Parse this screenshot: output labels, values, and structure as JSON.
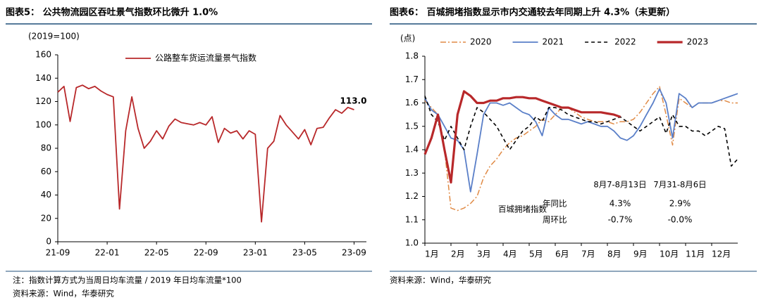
{
  "chart_data": [
    {
      "type": "line",
      "title": "图表5：  公共物流园区吞吐景气指数环比微升 1.0%",
      "y_unit": "(2019=100)",
      "note": "注：指数计算方式为当周日均车流量 / 2019 年日均车流量*100",
      "source": "资料来源：Wind，华泰研究",
      "x": [
        0,
        0.5,
        1,
        1.5,
        2,
        2.5,
        3,
        3.5,
        4,
        4.5,
        5,
        5.5,
        6,
        6.5,
        7,
        7.5,
        8,
        8.5,
        9,
        9.5,
        10,
        10.5,
        11,
        11.5,
        12,
        12.5,
        13,
        13.5,
        14,
        14.5,
        15,
        15.5,
        16,
        16.5,
        17,
        17.5,
        18,
        18.5,
        19,
        19.5,
        20,
        20.5,
        21,
        21.5,
        22,
        22.5,
        23,
        23.5,
        24
      ],
      "series": [
        {
          "name": "公路整车货运流量景气指数",
          "color": "#b8282a",
          "style": "solid",
          "values": [
            128,
            133,
            103,
            132,
            134,
            131,
            133,
            129,
            126,
            124,
            28,
            95,
            124,
            97,
            80,
            86,
            95,
            88,
            99,
            105,
            102,
            101,
            100,
            102,
            100,
            107,
            85,
            97,
            93,
            95,
            88,
            95,
            92,
            17,
            80,
            86,
            108,
            100,
            94,
            88,
            96,
            83,
            97,
            98,
            106,
            113,
            110,
            115,
            113
          ]
        }
      ],
      "annotations": [
        {
          "text": "113.0"
        }
      ],
      "xlim": [
        0,
        25
      ],
      "xticks": [
        {
          "value": 0,
          "label": "21-09"
        },
        {
          "value": 4,
          "label": "22-01"
        },
        {
          "value": 8,
          "label": "22-05"
        },
        {
          "value": 12,
          "label": "22-09"
        },
        {
          "value": 16,
          "label": "23-01"
        },
        {
          "value": 20,
          "label": "23-05"
        },
        {
          "value": 24,
          "label": "23-09"
        }
      ],
      "ylim": [
        0,
        160
      ],
      "yticks": [
        0,
        20,
        40,
        60,
        80,
        100,
        120,
        140,
        160
      ],
      "legend": "top-left"
    },
    {
      "type": "line",
      "title": "图表6：  百城拥堵指数显示市内交通较去年同期上升 4.3%（未更新）",
      "y_unit": "(点)",
      "source": "资料来源：Wind，华泰研究",
      "series_label": "百城拥堵指数",
      "x": [
        0,
        0.25,
        0.5,
        0.75,
        1,
        1.25,
        1.5,
        1.75,
        2,
        2.25,
        2.5,
        2.75,
        3,
        3.25,
        3.5,
        3.75,
        4,
        4.25,
        4.5,
        4.75,
        5,
        5.25,
        5.5,
        5.75,
        6,
        6.25,
        6.5,
        6.75,
        7,
        7.25,
        7.5,
        7.75,
        8,
        8.25,
        8.5,
        8.75,
        9,
        9.25,
        9.5,
        9.75,
        10,
        10.25,
        10.5,
        10.75,
        11,
        11.25,
        11.5,
        11.75,
        12
      ],
      "series": [
        {
          "name": "2020",
          "color": "#e08a45",
          "style": "dashdot",
          "values": [
            1.61,
            1.58,
            1.55,
            1.4,
            1.15,
            1.14,
            1.15,
            1.17,
            1.2,
            1.28,
            1.33,
            1.36,
            1.4,
            1.43,
            1.45,
            1.46,
            1.48,
            1.5,
            1.53,
            1.52,
            1.55,
            1.58,
            1.58,
            1.56,
            1.54,
            1.53,
            1.52,
            1.52,
            1.52,
            1.51,
            1.52,
            1.52,
            1.53,
            1.56,
            1.6,
            1.64,
            1.67,
            1.55,
            1.42,
            1.62,
            1.6,
            1.58,
            1.6,
            1.6,
            1.6,
            1.61,
            1.61,
            1.6,
            1.6
          ]
        },
        {
          "name": "2021",
          "color": "#5a7fc8",
          "style": "solid",
          "values": [
            1.62,
            1.57,
            1.55,
            1.5,
            1.45,
            1.44,
            1.4,
            1.22,
            1.38,
            1.55,
            1.6,
            1.6,
            1.59,
            1.6,
            1.58,
            1.56,
            1.55,
            1.52,
            1.46,
            1.58,
            1.55,
            1.53,
            1.53,
            1.52,
            1.51,
            1.52,
            1.51,
            1.5,
            1.5,
            1.48,
            1.45,
            1.44,
            1.46,
            1.5,
            1.55,
            1.6,
            1.66,
            1.6,
            1.45,
            1.64,
            1.62,
            1.58,
            1.6,
            1.6,
            1.6,
            1.61,
            1.62,
            1.63,
            1.64
          ]
        },
        {
          "name": "2022",
          "color": "#000000",
          "style": "dashed",
          "values": [
            1.63,
            1.55,
            1.52,
            1.44,
            1.5,
            1.45,
            1.4,
            1.5,
            1.58,
            1.56,
            1.53,
            1.5,
            1.45,
            1.4,
            1.44,
            1.48,
            1.5,
            1.54,
            1.52,
            1.58,
            1.58,
            1.57,
            1.55,
            1.54,
            1.53,
            1.52,
            1.52,
            1.51,
            1.52,
            1.53,
            1.54,
            1.52,
            1.5,
            1.48,
            1.5,
            1.52,
            1.54,
            1.47,
            1.55,
            1.5,
            1.5,
            1.48,
            1.48,
            1.46,
            1.48,
            1.5,
            1.49,
            1.33,
            1.36
          ]
        },
        {
          "name": "2023",
          "color": "#b8282a",
          "style": "bold",
          "values": [
            1.38,
            1.45,
            1.55,
            1.4,
            1.26,
            1.55,
            1.65,
            1.63,
            1.6,
            1.6,
            1.61,
            1.61,
            1.62,
            1.62,
            1.625,
            1.625,
            1.62,
            1.62,
            1.61,
            1.6,
            1.59,
            1.58,
            1.58,
            1.57,
            1.56,
            1.56,
            1.56,
            1.56,
            1.555,
            1.55,
            1.54,
            null,
            null,
            null,
            null,
            null,
            null,
            null,
            null,
            null,
            null,
            null,
            null,
            null,
            null,
            null,
            null,
            null,
            null
          ]
        }
      ],
      "table": {
        "columns": [
          "8月7-8月13日",
          "7月31-8月6日"
        ],
        "rows": [
          {
            "label": "年同比",
            "cells": [
              "4.3%",
              "2.9%"
            ]
          },
          {
            "label": "周环比",
            "cells": [
              "-0.7%",
              "-0.0%"
            ]
          }
        ]
      },
      "xlim": [
        0,
        12
      ],
      "xticks": [
        {
          "value": 0,
          "label": "1月"
        },
        {
          "value": 1,
          "label": "2月"
        },
        {
          "value": 2,
          "label": "3月"
        },
        {
          "value": 3,
          "label": "4月"
        },
        {
          "value": 4,
          "label": "5月"
        },
        {
          "value": 5,
          "label": "6月"
        },
        {
          "value": 6,
          "label": "7月"
        },
        {
          "value": 7,
          "label": "8月"
        },
        {
          "value": 8,
          "label": "9月"
        },
        {
          "value": 9,
          "label": "10月"
        },
        {
          "value": 10,
          "label": "11月"
        },
        {
          "value": 11,
          "label": "12月"
        }
      ],
      "ylim": [
        1.0,
        1.8
      ],
      "yticks": [
        {
          "value": 1.0,
          "label": "1.0"
        },
        1.1,
        1.2,
        1.3,
        1.4,
        1.5,
        1.6,
        1.7,
        1.8
      ],
      "legend": "top"
    }
  ]
}
